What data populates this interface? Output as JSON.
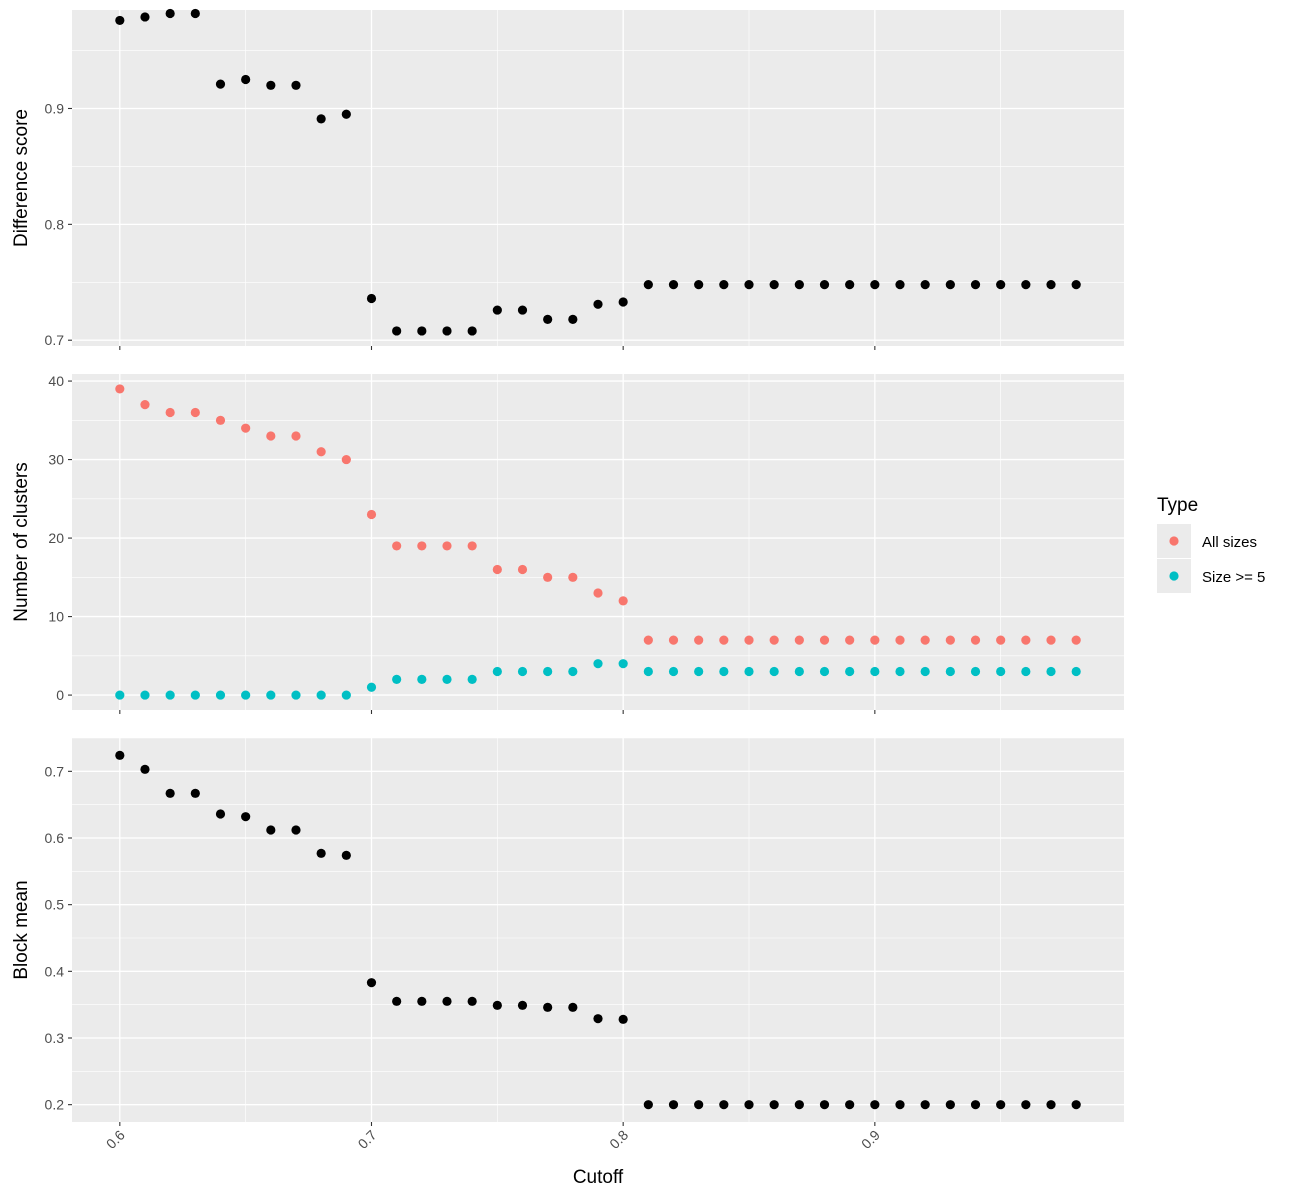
{
  "chart_data": [
    {
      "type": "scatter",
      "panel": "top",
      "ylabel": "Difference score",
      "ylim": [
        0.695,
        0.985
      ],
      "yticks": [
        0.7,
        0.8,
        0.9
      ],
      "grid": true,
      "series": [
        {
          "color": "#000000",
          "x": [
            0.6,
            0.61,
            0.62,
            0.63,
            0.64,
            0.65,
            0.66,
            0.67,
            0.68,
            0.69,
            0.7,
            0.71,
            0.72,
            0.73,
            0.74,
            0.75,
            0.76,
            0.77,
            0.78,
            0.79,
            0.8,
            0.81,
            0.82,
            0.83,
            0.84,
            0.85,
            0.86,
            0.87,
            0.88,
            0.89,
            0.9,
            0.91,
            0.92,
            0.93,
            0.94,
            0.95,
            0.96,
            0.97,
            0.98
          ],
          "y": [
            0.976,
            0.979,
            0.982,
            0.982,
            0.921,
            0.925,
            0.92,
            0.92,
            0.891,
            0.895,
            0.736,
            0.708,
            0.708,
            0.708,
            0.708,
            0.726,
            0.726,
            0.718,
            0.718,
            0.731,
            0.733,
            0.748,
            0.748,
            0.748,
            0.748,
            0.748,
            0.748,
            0.748,
            0.748,
            0.748,
            0.748,
            0.748,
            0.748,
            0.748,
            0.748,
            0.748,
            0.748,
            0.748,
            0.748
          ]
        }
      ]
    },
    {
      "type": "scatter",
      "panel": "middle",
      "ylabel": "Number of clusters",
      "ylim": [
        -1.9,
        40.9
      ],
      "yticks": [
        0,
        10,
        20,
        30,
        40
      ],
      "grid": true,
      "legend": {
        "title": "Type",
        "placement": "right",
        "entries": [
          "All sizes",
          "Size >= 5"
        ]
      },
      "series": [
        {
          "name": "All sizes",
          "color": "#F8766D",
          "x": [
            0.6,
            0.61,
            0.62,
            0.63,
            0.64,
            0.65,
            0.66,
            0.67,
            0.68,
            0.69,
            0.7,
            0.71,
            0.72,
            0.73,
            0.74,
            0.75,
            0.76,
            0.77,
            0.78,
            0.79,
            0.8,
            0.81,
            0.82,
            0.83,
            0.84,
            0.85,
            0.86,
            0.87,
            0.88,
            0.89,
            0.9,
            0.91,
            0.92,
            0.93,
            0.94,
            0.95,
            0.96,
            0.97,
            0.98
          ],
          "y": [
            39,
            37,
            36,
            36,
            35,
            34,
            33,
            33,
            31,
            30,
            23,
            19,
            19,
            19,
            19,
            16,
            16,
            15,
            15,
            13,
            12,
            7,
            7,
            7,
            7,
            7,
            7,
            7,
            7,
            7,
            7,
            7,
            7,
            7,
            7,
            7,
            7,
            7,
            7
          ]
        },
        {
          "name": "Size >= 5",
          "color": "#00BFC4",
          "x": [
            0.6,
            0.61,
            0.62,
            0.63,
            0.64,
            0.65,
            0.66,
            0.67,
            0.68,
            0.69,
            0.7,
            0.71,
            0.72,
            0.73,
            0.74,
            0.75,
            0.76,
            0.77,
            0.78,
            0.79,
            0.8,
            0.81,
            0.82,
            0.83,
            0.84,
            0.85,
            0.86,
            0.87,
            0.88,
            0.89,
            0.9,
            0.91,
            0.92,
            0.93,
            0.94,
            0.95,
            0.96,
            0.97,
            0.98
          ],
          "y": [
            0,
            0,
            0,
            0,
            0,
            0,
            0,
            0,
            0,
            0,
            1,
            2,
            2,
            2,
            2,
            3,
            3,
            3,
            3,
            4,
            4,
            3,
            3,
            3,
            3,
            3,
            3,
            3,
            3,
            3,
            3,
            3,
            3,
            3,
            3,
            3,
            3,
            3,
            3
          ]
        }
      ]
    },
    {
      "type": "scatter",
      "panel": "bottom",
      "ylabel": "Block mean",
      "xlabel": "Cutoff",
      "ylim": [
        0.174,
        0.75
      ],
      "yticks": [
        0.2,
        0.3,
        0.4,
        0.5,
        0.6,
        0.7
      ],
      "grid": true,
      "series": [
        {
          "color": "#000000",
          "x": [
            0.6,
            0.61,
            0.62,
            0.63,
            0.64,
            0.65,
            0.66,
            0.67,
            0.68,
            0.69,
            0.7,
            0.71,
            0.72,
            0.73,
            0.74,
            0.75,
            0.76,
            0.77,
            0.78,
            0.79,
            0.8,
            0.81,
            0.82,
            0.83,
            0.84,
            0.85,
            0.86,
            0.87,
            0.88,
            0.89,
            0.9,
            0.91,
            0.92,
            0.93,
            0.94,
            0.95,
            0.96,
            0.97,
            0.98
          ],
          "y": [
            0.724,
            0.703,
            0.667,
            0.667,
            0.636,
            0.632,
            0.612,
            0.612,
            0.577,
            0.574,
            0.383,
            0.355,
            0.355,
            0.355,
            0.355,
            0.349,
            0.349,
            0.346,
            0.346,
            0.329,
            0.328,
            0.2,
            0.2,
            0.2,
            0.2,
            0.2,
            0.2,
            0.2,
            0.2,
            0.2,
            0.2,
            0.2,
            0.2,
            0.2,
            0.2,
            0.2,
            0.2,
            0.2,
            0.2
          ]
        }
      ]
    }
  ],
  "x_axis": {
    "label": "Cutoff",
    "xlim": [
      0.581,
      0.999
    ],
    "ticks": [
      0.6,
      0.7,
      0.8,
      0.9
    ],
    "tick_labels": [
      "0.6",
      "0.7",
      "0.8",
      "0.9"
    ]
  },
  "colors": {
    "panel_bg": "#EBEBEB",
    "grid_major": "#FFFFFF",
    "all_sizes": "#F8766D",
    "size_ge_5": "#00BFC4",
    "points": "#000000"
  }
}
